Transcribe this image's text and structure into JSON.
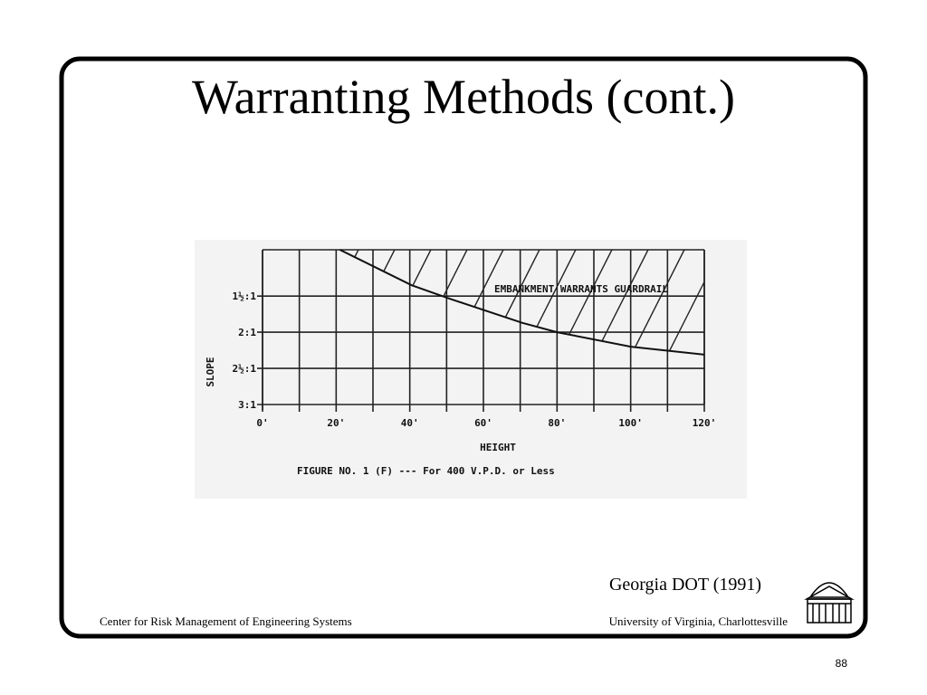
{
  "title": "Warranting Methods (cont.)",
  "chart_data": {
    "type": "line",
    "x_label": "HEIGHT",
    "y_label": "SLOPE",
    "annotation": "EMBANKMENT WARRANTS GUARDRAIL",
    "caption": "FIGURE NO. 1 (F) --- For 400 V.P.D. or Less",
    "x": [
      21,
      40.5,
      51,
      70.5,
      80,
      100,
      120
    ],
    "values": [
      0.86,
      1.35,
      1.54,
      1.87,
      2.0,
      2.2,
      2.31
    ],
    "color": "#111111",
    "xlim": [
      0,
      120
    ],
    "ylim": [
      3,
      0.86
    ],
    "xticks": [
      {
        "value": 0,
        "label": "0'"
      },
      {
        "value": 20,
        "label": "20'"
      },
      {
        "value": 40,
        "label": "40'"
      },
      {
        "value": 60,
        "label": "60'"
      },
      {
        "value": 80,
        "label": "80'"
      },
      {
        "value": 100,
        "label": "100'"
      },
      {
        "value": 120,
        "label": "120'"
      }
    ],
    "xgrid": [
      10,
      30,
      50,
      70,
      90,
      110
    ],
    "yticks": [
      {
        "value": 1.5,
        "label": "1½:1"
      },
      {
        "value": 2,
        "label": "2:1"
      },
      {
        "value": 2.5,
        "label": "2½:1"
      },
      {
        "value": 3,
        "label": "3:1"
      }
    ],
    "hatch": true
  },
  "source": "Georgia DOT (1991)",
  "footer": {
    "left": "Center for Risk Management of Engineering Systems",
    "right": "University of Virginia, Charlottesville"
  },
  "page_number": "88"
}
